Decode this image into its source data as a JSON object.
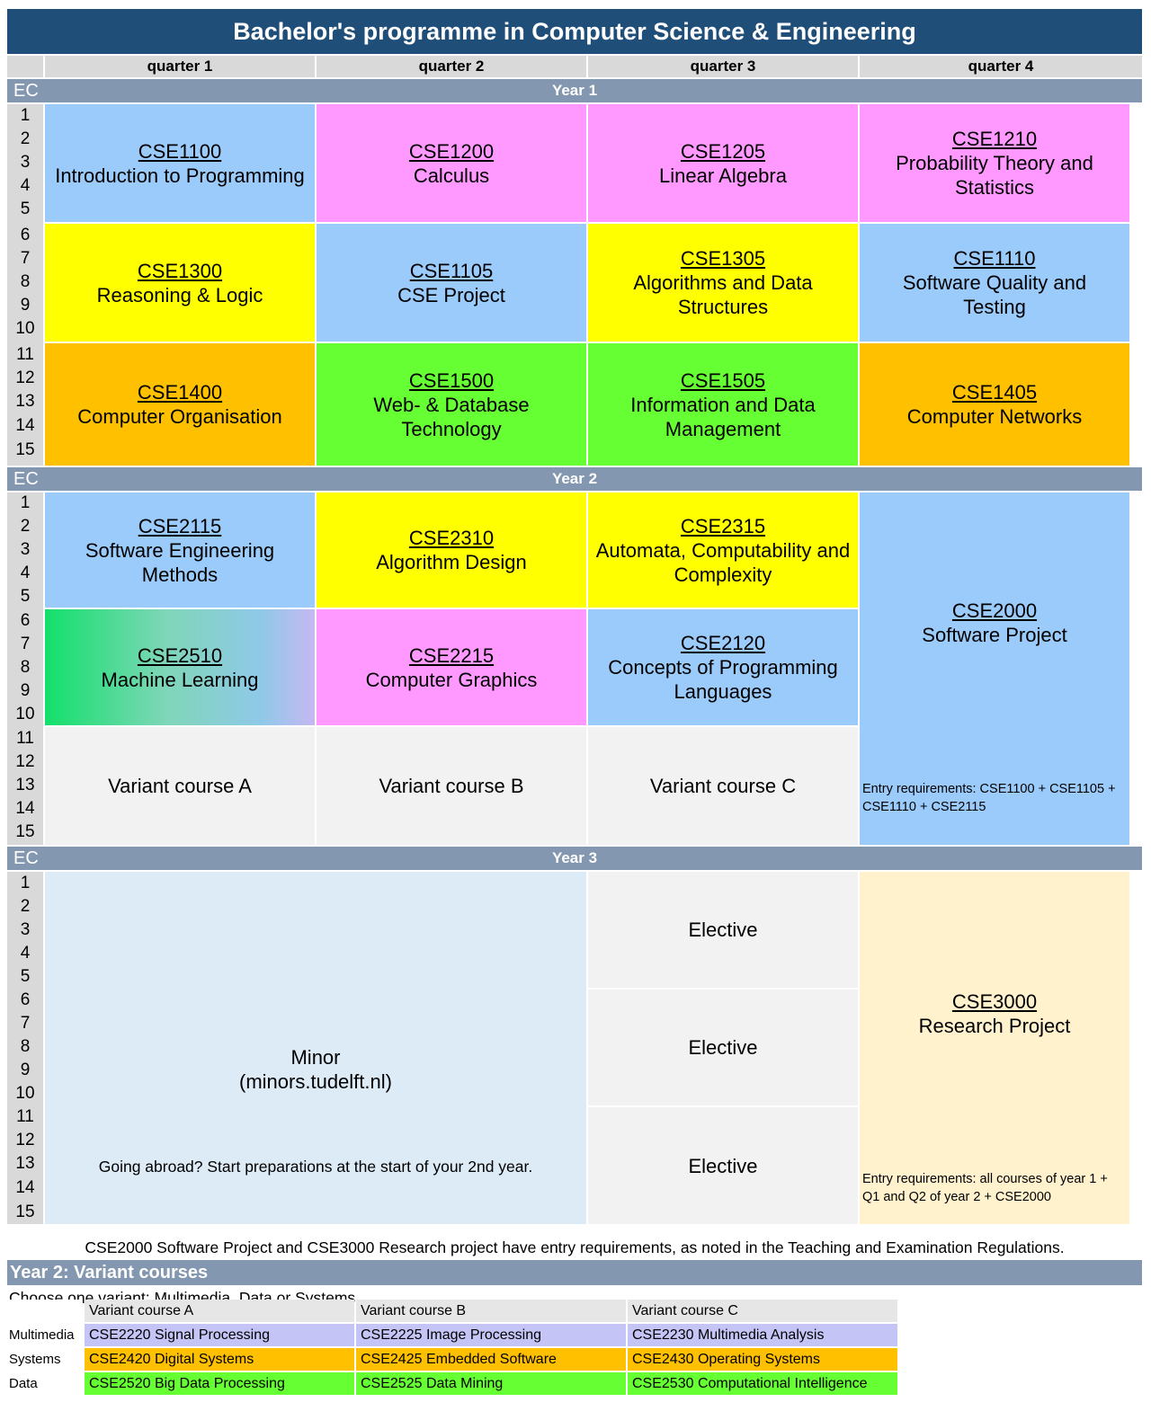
{
  "title": "Bachelor's programme in Computer Science & Engineering",
  "quarters": [
    "quarter 1",
    "quarter 2",
    "quarter 3",
    "quarter 4"
  ],
  "ec_label": "EC",
  "ec_numbers": [
    "1",
    "2",
    "3",
    "4",
    "5",
    "6",
    "7",
    "8",
    "9",
    "10",
    "11",
    "12",
    "13",
    "14",
    "15"
  ],
  "years": {
    "y1": {
      "label": "Year 1",
      "cells": [
        {
          "code": "CSE1100",
          "name": "Introduction to Programming",
          "color": "#9bcbfb"
        },
        {
          "code": "CSE1200",
          "name": "Calculus",
          "color": "#ff99ff"
        },
        {
          "code": "CSE1205",
          "name": "Linear Algebra",
          "color": "#ff99ff"
        },
        {
          "code": "CSE1210",
          "name": "Probability Theory and Statistics",
          "color": "#ff99ff"
        },
        {
          "code": "CSE1300",
          "name": "Reasoning & Logic",
          "color": "#ffff00"
        },
        {
          "code": "CSE1105",
          "name": "CSE Project",
          "color": "#9bcbfb"
        },
        {
          "code": "CSE1305",
          "name": "Algorithms and Data Structures",
          "color": "#ffff00"
        },
        {
          "code": "CSE1110",
          "name": "Software Quality and Testing",
          "color": "#9bcbfb"
        },
        {
          "code": "CSE1400",
          "name": "Computer Organisation",
          "color": "#ffc000"
        },
        {
          "code": "CSE1500",
          "name": "Web- & Database Technology",
          "color": "#66ff33"
        },
        {
          "code": "CSE1505",
          "name": "Information and Data Management",
          "color": "#66ff33"
        },
        {
          "code": "CSE1405",
          "name": "Computer Networks",
          "color": "#ffc000"
        }
      ]
    },
    "y2": {
      "label": "Year 2",
      "cells": [
        {
          "code": "CSE2115",
          "name": "Software Engineering Methods"
        },
        {
          "code": "CSE2310",
          "name": "Algorithm Design"
        },
        {
          "code": "CSE2315",
          "name": "Automata, Computability and Complexity"
        },
        {
          "code": "CSE2510",
          "name": "Machine Learning"
        },
        {
          "code": "CSE2215",
          "name": "Computer Graphics"
        },
        {
          "code": "CSE2120",
          "name": "Concepts of Programming Languages"
        }
      ],
      "variants": [
        "Variant course A",
        "Variant course B",
        "Variant course C"
      ],
      "project": {
        "code": "CSE2000",
        "name": "Software Project",
        "entry": "Entry requirements: CSE1100 + CSE1105 + CSE1110 + CSE2115"
      }
    },
    "y3": {
      "label": "Year 3",
      "minor_line1": "Minor",
      "minor_line2": "(minors.tudelft.nl)",
      "abroad": "Going abroad? Start preparations at the start of your 2nd year.",
      "electives": [
        "Elective",
        "Elective",
        "Elective"
      ],
      "project": {
        "code": "CSE3000",
        "name": "Research Project",
        "entry": "Entry requirements: all courses of year 1 + Q1 and Q2 of year 2 + CSE2000"
      }
    }
  },
  "footnote": "CSE2000 Software Project and CSE3000 Research project have entry requirements, as noted in the Teaching and Examination Regulations.",
  "variant_section": {
    "title": "Year 2: Variant courses",
    "instruction": "Choose one variant: Multimedia, Data or Systems",
    "columns": [
      "Variant course A",
      "Variant course B",
      "Variant course C"
    ],
    "rows": [
      {
        "label": "Multimedia",
        "color": "#c5c4f6",
        "courses": [
          "CSE2220 Signal Processing",
          "CSE2225 Image Processing",
          "CSE2230 Multimedia Analysis"
        ]
      },
      {
        "label": "Systems",
        "color": "#ffc000",
        "courses": [
          "CSE2420 Digital Systems",
          "CSE2425 Embedded Software",
          "CSE2430 Operating Systems"
        ]
      },
      {
        "label": "Data",
        "color": "#66ff33",
        "courses": [
          "CSE2520 Big Data Processing",
          "CSE2525 Data Mining",
          "CSE2530 Computational Intelligence"
        ]
      }
    ]
  }
}
